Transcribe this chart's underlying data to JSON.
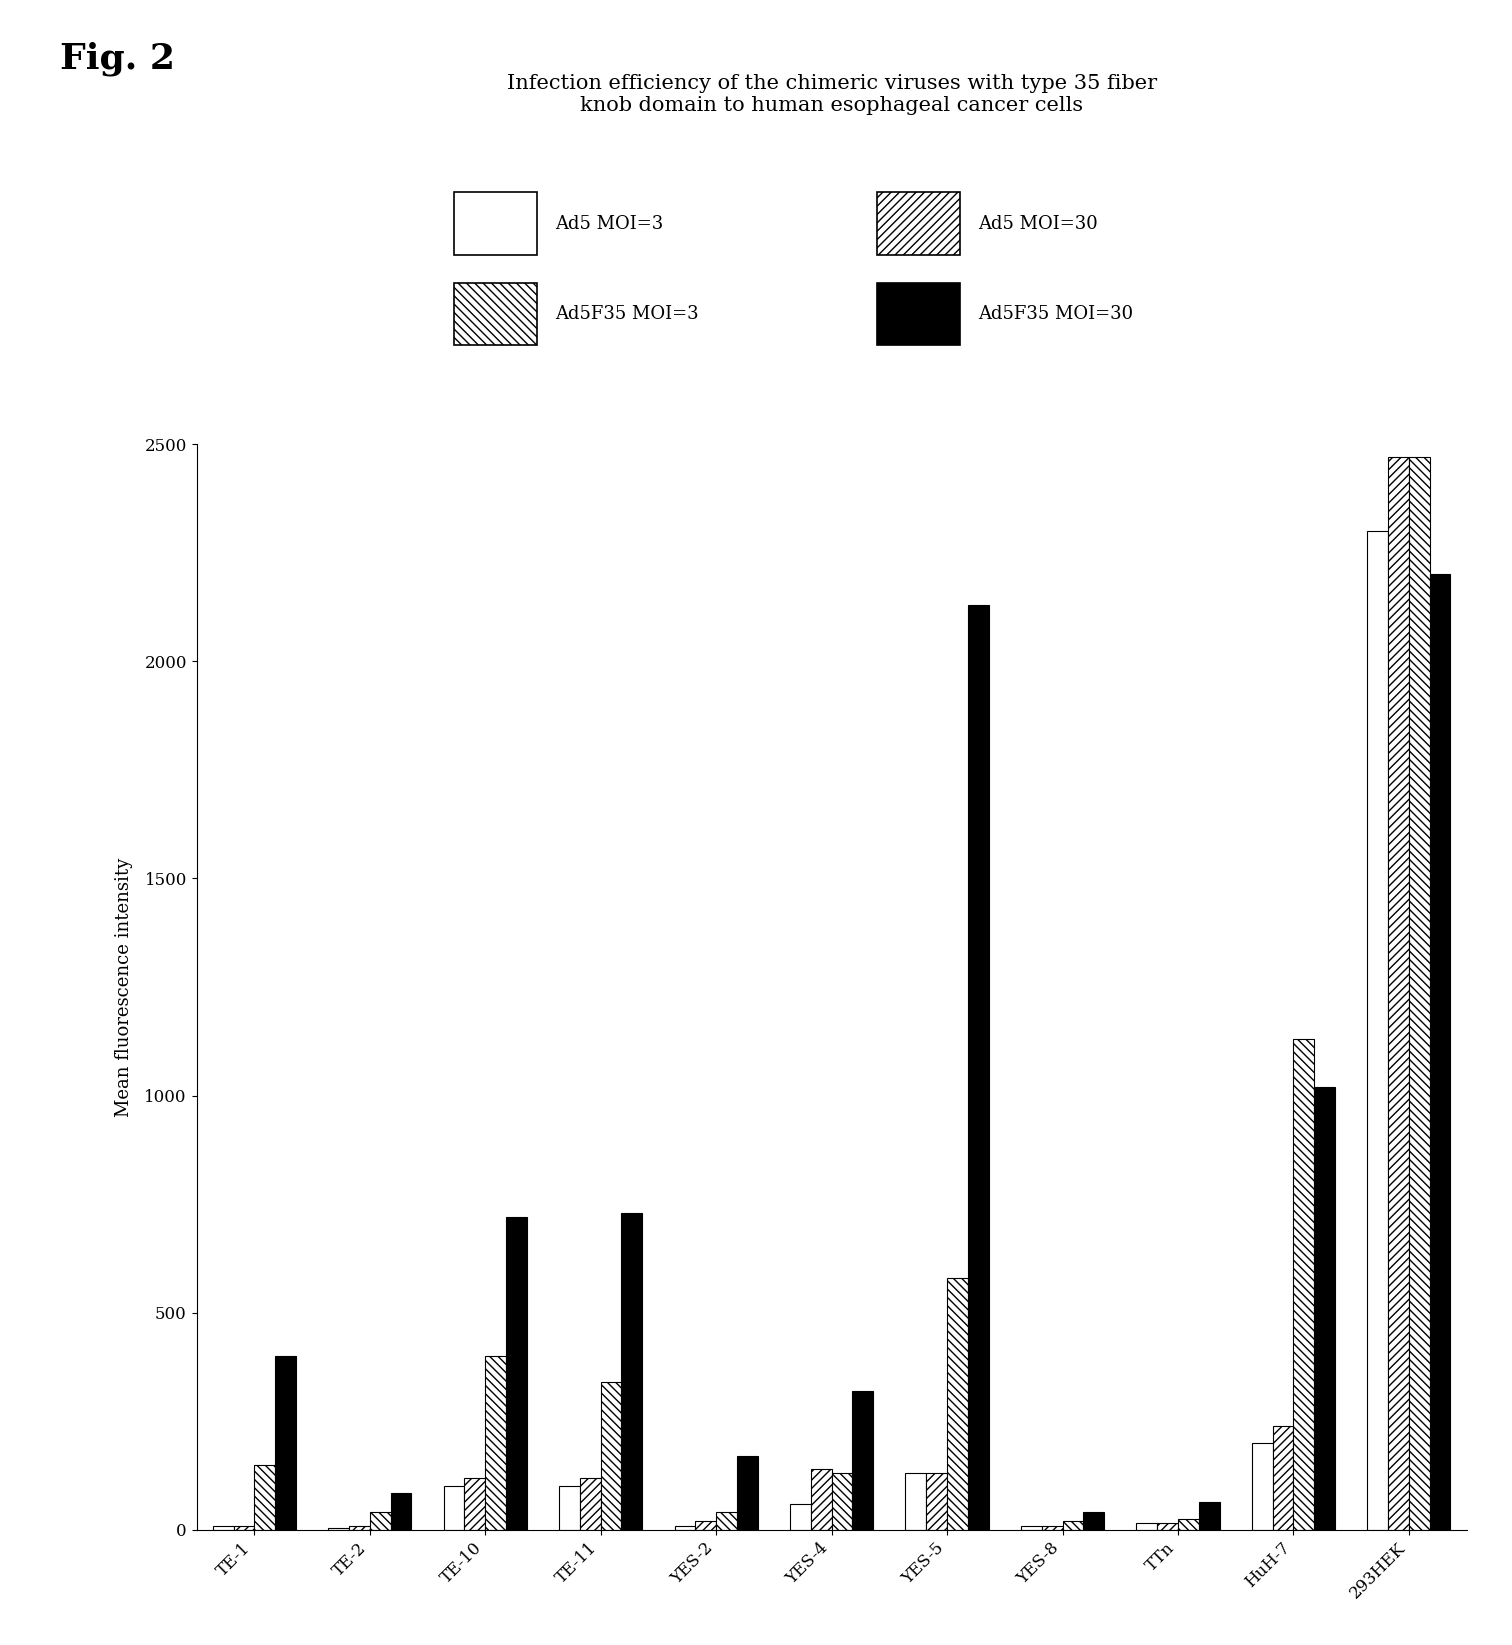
{
  "title_line1": "Infection efficiency of the chimeric viruses with type 35 fiber",
  "title_line2": "knob domain to human esophageal cancer cells",
  "fig_label": "Fig. 2",
  "ylabel": "Mean fluorescence intensity",
  "categories": [
    "TE-1",
    "TE-2",
    "TE-10",
    "TE-11",
    "YES-2",
    "YES-4",
    "YES-5",
    "YES-8",
    "TTn",
    "HuH-7",
    "293HEK"
  ],
  "series": {
    "Ad5 MOI=3": [
      10,
      5,
      100,
      100,
      10,
      60,
      130,
      10,
      15,
      200,
      2300
    ],
    "Ad5 MOI=30": [
      10,
      10,
      120,
      120,
      20,
      140,
      130,
      10,
      15,
      240,
      2470
    ],
    "Ad5F35 MOI=3": [
      150,
      40,
      400,
      340,
      40,
      130,
      580,
      20,
      25,
      1130,
      2470
    ],
    "Ad5F35 MOI=30": [
      400,
      85,
      720,
      730,
      170,
      320,
      2130,
      40,
      65,
      1020,
      2200
    ]
  },
  "legend_labels": [
    "Ad5 MOI=3",
    "Ad5 MOI=30",
    "Ad5F35 MOI=3",
    "Ad5F35 MOI=30"
  ],
  "bar_styles": [
    {
      "facecolor": "white",
      "edgecolor": "black",
      "hatch": ""
    },
    {
      "facecolor": "white",
      "edgecolor": "black",
      "hatch": "////"
    },
    {
      "facecolor": "white",
      "edgecolor": "black",
      "hatch": "\\\\\\\\"
    },
    {
      "facecolor": "black",
      "edgecolor": "black",
      "hatch": ""
    }
  ],
  "ylim": [
    0,
    2500
  ],
  "yticks": [
    0,
    500,
    1000,
    1500,
    2000,
    2500
  ],
  "background_color": "white",
  "title_fontsize": 15,
  "axis_fontsize": 13,
  "tick_fontsize": 12,
  "legend_fontsize": 13,
  "figlabel_fontsize": 26
}
